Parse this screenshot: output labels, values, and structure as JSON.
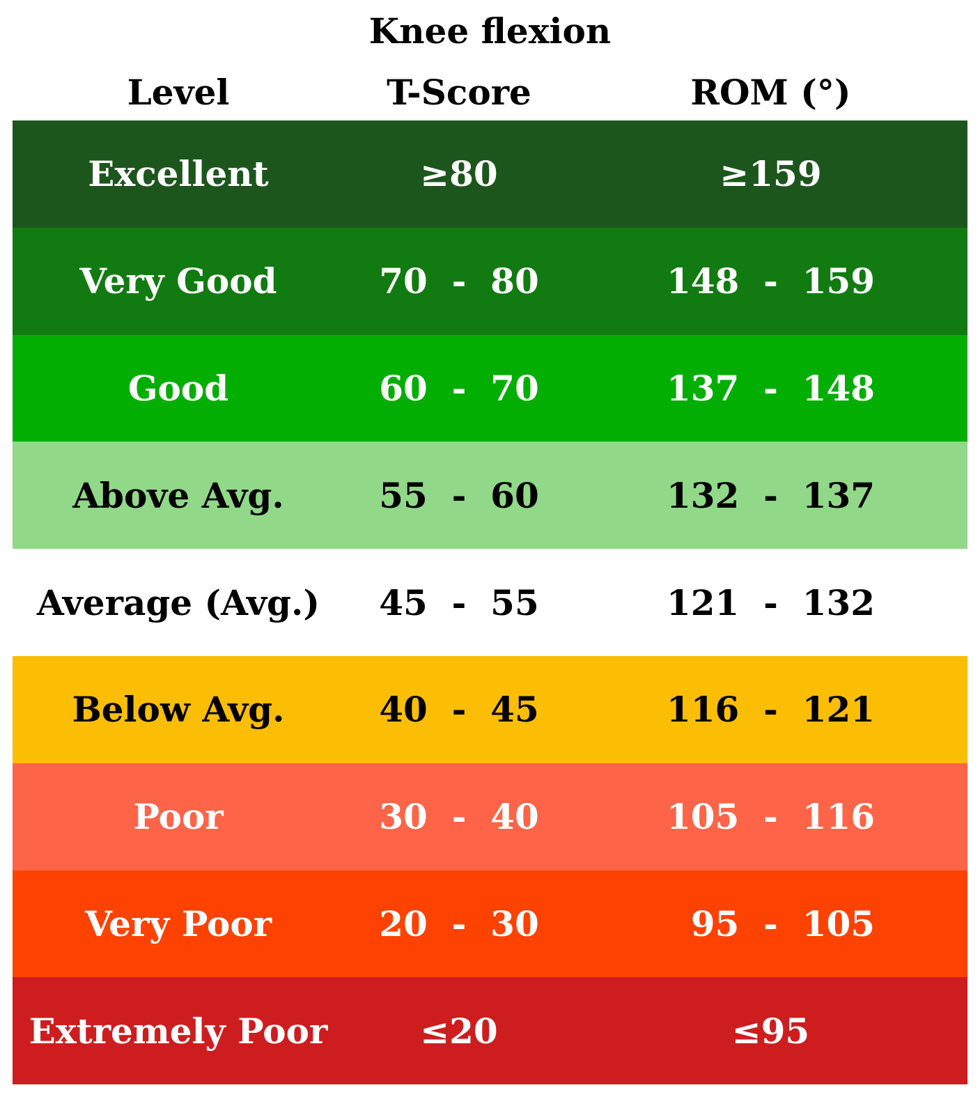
{
  "chart_data": {
    "type": "table",
    "title": "Knee flexion",
    "columns": [
      "Level",
      "T-Score",
      "ROM (°)"
    ],
    "rows": [
      {
        "level": "Excellent",
        "t_score": "≥80",
        "rom": "≥159",
        "bg": "#1d561d",
        "fg": "#ffffff"
      },
      {
        "level": "Very Good",
        "t_score": "70  -  80",
        "rom": "148  -  159",
        "bg": "#117b11",
        "fg": "#ffffff"
      },
      {
        "level": "Good",
        "t_score": "60  -  70",
        "rom": "137  -  148",
        "bg": "#03ae03",
        "fg": "#ffffff"
      },
      {
        "level": "Above Avg.",
        "t_score": "55  -  60",
        "rom": "132  -  137",
        "bg": "#91d889",
        "fg": "#000000"
      },
      {
        "level": "Average (Avg.)",
        "t_score": "45  -  55",
        "rom": "121  -  132",
        "bg": "#ffffff",
        "fg": "#000000"
      },
      {
        "level": "Below Avg.",
        "t_score": "40  -  45",
        "rom": "116  -  121",
        "bg": "#fcbd05",
        "fg": "#000000"
      },
      {
        "level": "Poor",
        "t_score": "30  -  40",
        "rom": "105  -  116",
        "bg": "#fe6448",
        "fg": "#ffffff"
      },
      {
        "level": "Very Poor",
        "t_score": "20  -  30",
        "rom": "  95  -  105",
        "bg": "#fe4202",
        "fg": "#ffffff"
      },
      {
        "level": "Extremely Poor",
        "t_score": "≤20",
        "rom": "≤95",
        "bg": "#ce1d1f",
        "fg": "#ffffff"
      }
    ]
  }
}
